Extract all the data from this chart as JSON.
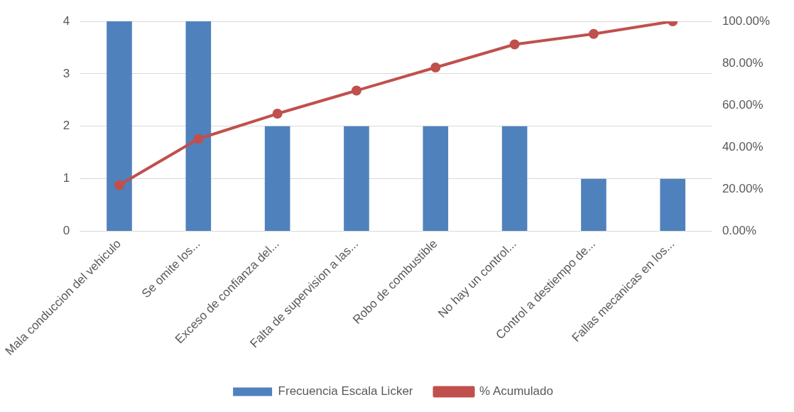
{
  "chart_data": {
    "type": "bar",
    "categories": [
      "Mala conduccion del vehiculo",
      "Se omite los...",
      "Exceso de confianza del...",
      "Falta de supervision a las...",
      "Robo de combustible",
      "No hay un control...",
      "Control a destiempo de...",
      "Fallas mecanicas en los..."
    ],
    "series": [
      {
        "name": "Frecuencia Escala Licker",
        "color": "#4f81bd",
        "values": [
          4,
          4,
          2,
          2,
          2,
          2,
          1,
          1
        ]
      },
      {
        "name": "% Acumulado",
        "type": "line",
        "axis": "y2",
        "color": "#c0504d",
        "values": [
          22,
          44,
          56,
          67,
          78,
          89,
          94,
          100
        ]
      }
    ],
    "ylim": [
      0,
      4
    ],
    "yticks": [
      0,
      1,
      2,
      3,
      4
    ],
    "y2lim": [
      0,
      100
    ],
    "y2ticks": [
      {
        "value": 0,
        "label": "0.00%"
      },
      {
        "value": 20,
        "label": "20.00%"
      },
      {
        "value": 40,
        "label": "40.00%"
      },
      {
        "value": 60,
        "label": "60.00%"
      },
      {
        "value": 80,
        "label": "80.00%"
      },
      {
        "value": 100,
        "label": "100.00%"
      }
    ],
    "grid": "y",
    "legend": "bottom",
    "marker": "circle"
  }
}
